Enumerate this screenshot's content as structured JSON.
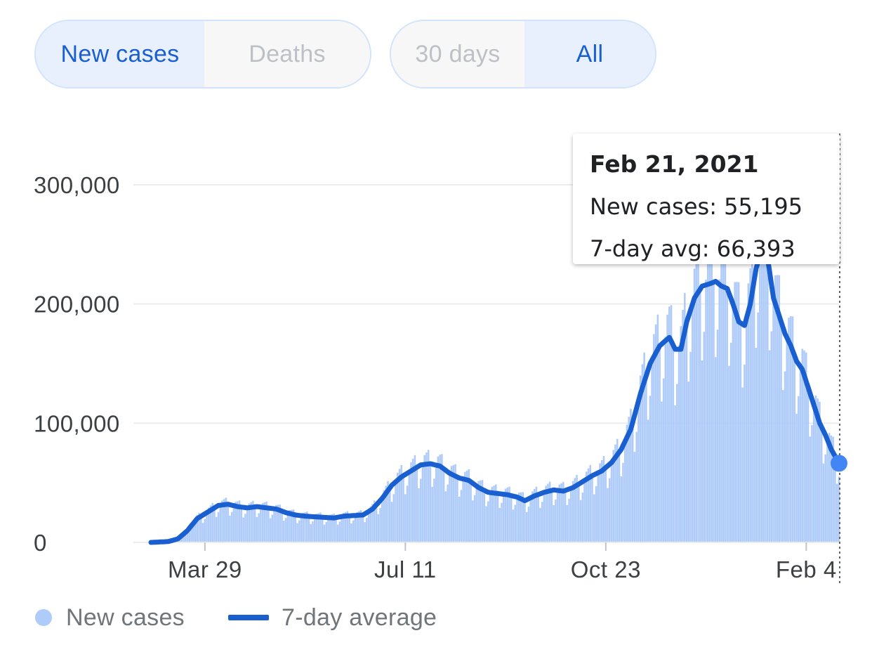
{
  "toggles": {
    "metric": [
      {
        "label": "New cases",
        "active": true
      },
      {
        "label": "Deaths",
        "active": false
      }
    ],
    "range": [
      {
        "label": "30 days",
        "active": false
      },
      {
        "label": "All",
        "active": true
      }
    ]
  },
  "tooltip": {
    "date": "Feb 21, 2021",
    "new_cases": "New cases: 55,195",
    "avg": "7-day avg: 66,393"
  },
  "legend": {
    "new_cases": "New cases",
    "avg": "7-day average"
  },
  "colors": {
    "bars": "#aecbfa",
    "line": "#1a5fd0",
    "marker": "#4285f4",
    "grid": "#ececec"
  },
  "chart_data": {
    "type": "bar",
    "ylim": [
      0,
      350000
    ],
    "yticks": [
      0,
      100000,
      200000,
      300000
    ],
    "ytick_labels": [
      "0",
      "100,000",
      "200,000",
      "300,000"
    ],
    "xrange": [
      "2020-03-01",
      "2021-02-21"
    ],
    "xticks": [
      "2020-03-29",
      "2020-07-11",
      "2020-10-23",
      "2021-02-04"
    ],
    "xtick_labels": [
      "Mar 29",
      "Jul 11",
      "Oct 23",
      "Feb 4"
    ],
    "series": [
      {
        "name": "7-day average",
        "render": "line",
        "points": [
          [
            "2020-03-01",
            0
          ],
          [
            "2020-03-10",
            700
          ],
          [
            "2020-03-15",
            3000
          ],
          [
            "2020-03-20",
            10000
          ],
          [
            "2020-03-25",
            20000
          ],
          [
            "2020-03-31",
            26000
          ],
          [
            "2020-04-05",
            31000
          ],
          [
            "2020-04-10",
            32000
          ],
          [
            "2020-04-15",
            30000
          ],
          [
            "2020-04-20",
            29000
          ],
          [
            "2020-04-25",
            30000
          ],
          [
            "2020-04-30",
            29000
          ],
          [
            "2020-05-05",
            28000
          ],
          [
            "2020-05-10",
            25000
          ],
          [
            "2020-05-15",
            23000
          ],
          [
            "2020-05-20",
            22000
          ],
          [
            "2020-05-25",
            21500
          ],
          [
            "2020-05-30",
            21000
          ],
          [
            "2020-06-04",
            20500
          ],
          [
            "2020-06-09",
            22000
          ],
          [
            "2020-06-14",
            22500
          ],
          [
            "2020-06-19",
            23000
          ],
          [
            "2020-06-24",
            28000
          ],
          [
            "2020-06-29",
            37000
          ],
          [
            "2020-07-04",
            48000
          ],
          [
            "2020-07-09",
            55000
          ],
          [
            "2020-07-14",
            60000
          ],
          [
            "2020-07-19",
            65000
          ],
          [
            "2020-07-24",
            66000
          ],
          [
            "2020-07-29",
            64000
          ],
          [
            "2020-08-03",
            58000
          ],
          [
            "2020-08-08",
            54000
          ],
          [
            "2020-08-13",
            52000
          ],
          [
            "2020-08-18",
            46000
          ],
          [
            "2020-08-23",
            42000
          ],
          [
            "2020-08-28",
            41000
          ],
          [
            "2020-09-02",
            40000
          ],
          [
            "2020-09-07",
            38000
          ],
          [
            "2020-09-11",
            35000
          ],
          [
            "2020-09-16",
            39000
          ],
          [
            "2020-09-21",
            42000
          ],
          [
            "2020-09-26",
            44000
          ],
          [
            "2020-10-01",
            43000
          ],
          [
            "2020-10-06",
            46000
          ],
          [
            "2020-10-11",
            51000
          ],
          [
            "2020-10-16",
            56000
          ],
          [
            "2020-10-21",
            60000
          ],
          [
            "2020-10-26",
            67000
          ],
          [
            "2020-10-31",
            78000
          ],
          [
            "2020-11-05",
            95000
          ],
          [
            "2020-11-10",
            125000
          ],
          [
            "2020-11-15",
            150000
          ],
          [
            "2020-11-20",
            165000
          ],
          [
            "2020-11-25",
            172000
          ],
          [
            "2020-11-28",
            162000
          ],
          [
            "2020-12-01",
            162000
          ],
          [
            "2020-12-04",
            185000
          ],
          [
            "2020-12-08",
            205000
          ],
          [
            "2020-12-12",
            215000
          ],
          [
            "2020-12-16",
            217000
          ],
          [
            "2020-12-19",
            219000
          ],
          [
            "2020-12-22",
            215000
          ],
          [
            "2020-12-25",
            213000
          ],
          [
            "2020-12-28",
            200000
          ],
          [
            "2020-12-31",
            185000
          ],
          [
            "2021-01-03",
            182000
          ],
          [
            "2021-01-06",
            200000
          ],
          [
            "2021-01-09",
            230000
          ],
          [
            "2021-01-12",
            246000
          ],
          [
            "2021-01-15",
            238000
          ],
          [
            "2021-01-18",
            205000
          ],
          [
            "2021-01-21",
            190000
          ],
          [
            "2021-01-24",
            175000
          ],
          [
            "2021-01-27",
            165000
          ],
          [
            "2021-01-30",
            152000
          ],
          [
            "2021-02-02",
            145000
          ],
          [
            "2021-02-05",
            130000
          ],
          [
            "2021-02-08",
            115000
          ],
          [
            "2021-02-11",
            100000
          ],
          [
            "2021-02-14",
            90000
          ],
          [
            "2021-02-17",
            78000
          ],
          [
            "2021-02-21",
            66393
          ]
        ]
      },
      {
        "name": "New cases",
        "render": "bars",
        "note_values": "daily values follow the 7-day average with weekday variation",
        "weekly_factors": [
          0.82,
          1.02,
          1.12,
          1.15,
          1.18,
          1.0,
          0.71
        ]
      }
    ],
    "highlight": {
      "date": "2021-02-21",
      "new_cases": 55195,
      "avg": 66393
    }
  }
}
